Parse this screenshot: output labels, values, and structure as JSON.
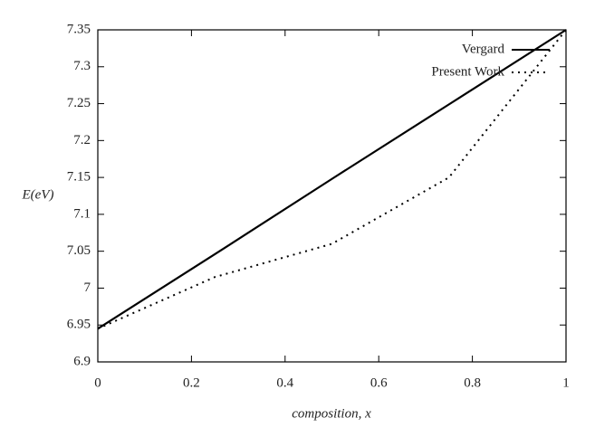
{
  "chart_data": {
    "type": "line",
    "x_label": "composition, x",
    "y_label": "E(eV)",
    "x": [
      0,
      0.25,
      0.5,
      0.75,
      1
    ],
    "series": [
      {
        "name": "Vergard",
        "color": "#000000",
        "dash": false,
        "values": [
          6.945,
          7.046,
          7.148,
          7.249,
          7.35
        ]
      },
      {
        "name": "Present Work",
        "color": "#000000",
        "dash": true,
        "values": [
          6.945,
          7.015,
          7.06,
          7.15,
          7.35
        ]
      }
    ],
    "xlim": [
      0,
      1
    ],
    "xticks": [
      0,
      0.2,
      0.4,
      0.6,
      0.8,
      1
    ],
    "ylim": [
      6.9,
      7.35
    ],
    "yticks": [
      6.9,
      6.95,
      7,
      7.05,
      7.1,
      7.15,
      7.2,
      7.25,
      7.3,
      7.35
    ],
    "legend": "top-right"
  }
}
